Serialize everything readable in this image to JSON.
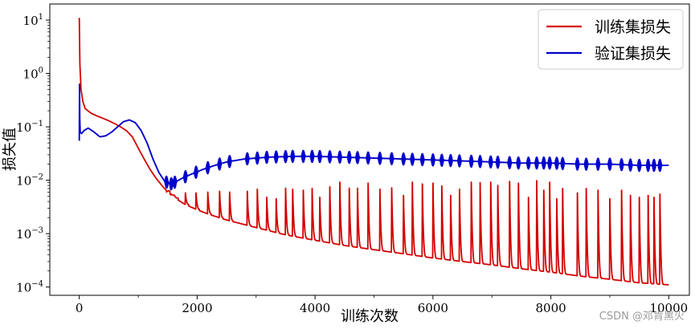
{
  "watermark": "CSDN @邓肯黑火",
  "chart_data": {
    "type": "line",
    "title": "",
    "xlabel": "训练次数",
    "ylabel": "损失值",
    "xlim": [
      -500,
      10350
    ],
    "ylim": [
      7e-05,
      20
    ],
    "yscale": "log",
    "xticks": [
      0,
      2000,
      4000,
      6000,
      8000,
      10000
    ],
    "yticks": [
      0.0001,
      0.001,
      0.01,
      0.1,
      1,
      10
    ],
    "ytick_labels": [
      {
        "base": "10",
        "exp": "−4"
      },
      {
        "base": "10",
        "exp": "−3"
      },
      {
        "base": "10",
        "exp": "−2"
      },
      {
        "base": "10",
        "exp": "−1"
      },
      {
        "base": "10",
        "exp": "0"
      },
      {
        "base": "10",
        "exp": "1"
      }
    ],
    "legend_position": "top-right",
    "grid": false,
    "series": [
      {
        "name": "训练集损失",
        "color": "#d40000",
        "x": [
          0,
          10,
          30,
          60,
          100,
          200,
          300,
          400,
          500,
          600,
          700,
          800,
          900,
          1000,
          1100,
          1200,
          1300,
          1400,
          1500,
          1600,
          1800,
          2000,
          2200,
          2500,
          3000,
          3500,
          4000,
          4500,
          5000,
          5500,
          6000,
          6500,
          7000,
          7500,
          8000,
          8500,
          9000,
          9500,
          10000
        ],
        "values": [
          11,
          1.5,
          0.5,
          0.3,
          0.22,
          0.18,
          0.16,
          0.145,
          0.13,
          0.115,
          0.1,
          0.085,
          0.065,
          0.04,
          0.025,
          0.016,
          0.011,
          0.008,
          0.006,
          0.0048,
          0.0035,
          0.0028,
          0.0023,
          0.0018,
          0.0013,
          0.00095,
          0.00075,
          0.0006,
          0.0005,
          0.00042,
          0.00035,
          0.0003,
          0.00026,
          0.00022,
          0.00019,
          0.00016,
          0.00014,
          0.00012,
          0.00011
        ],
        "spike_x": [
          1480,
          1560,
          1620,
          1800,
          1980,
          2180,
          2380,
          2550,
          2850,
          3020,
          3180,
          3340,
          3500,
          3620,
          3800,
          3950,
          4080,
          4250,
          4420,
          4580,
          4720,
          4900,
          5100,
          5300,
          5500,
          5650,
          5820,
          6000,
          6150,
          6300,
          6450,
          6650,
          6800,
          6980,
          7100,
          7300,
          7450,
          7620,
          7760,
          7880,
          7980,
          8100,
          8200,
          8450,
          8600,
          8800,
          9000,
          9200,
          9350,
          9500,
          9650,
          9750,
          9850
        ],
        "spike_peak": [
          0.006,
          0.0055,
          0.005,
          0.0058,
          0.0058,
          0.006,
          0.0062,
          0.006,
          0.0062,
          0.0068,
          0.0048,
          0.0045,
          0.0071,
          0.0068,
          0.0065,
          0.007,
          0.0048,
          0.0075,
          0.0092,
          0.0071,
          0.0071,
          0.0088,
          0.0068,
          0.0072,
          0.0052,
          0.0092,
          0.0085,
          0.0088,
          0.0078,
          0.0052,
          0.0068,
          0.0092,
          0.009,
          0.0092,
          0.008,
          0.0095,
          0.0088,
          0.0048,
          0.0098,
          0.0065,
          0.0092,
          0.0045,
          0.007,
          0.0058,
          0.007,
          0.0065,
          0.0045,
          0.0065,
          0.0052,
          0.0048,
          0.0052,
          0.0048,
          0.0055
        ]
      },
      {
        "name": "验证集损失",
        "color": "#0000cc",
        "x": [
          0,
          3,
          8,
          15,
          40,
          80,
          150,
          250,
          350,
          450,
          550,
          650,
          750,
          850,
          950,
          1050,
          1150,
          1250,
          1350,
          1450,
          1550,
          1650,
          1750,
          1900,
          2100,
          2300,
          2500,
          2800,
          3200,
          3600,
          4000,
          4500,
          5000,
          5500,
          6000,
          6500,
          7000,
          7500,
          8000,
          8500,
          9000,
          9500,
          10000
        ],
        "values": [
          0.055,
          0.9,
          0.15,
          0.08,
          0.075,
          0.085,
          0.095,
          0.08,
          0.065,
          0.068,
          0.08,
          0.1,
          0.125,
          0.135,
          0.12,
          0.085,
          0.05,
          0.025,
          0.014,
          0.0095,
          0.0085,
          0.0095,
          0.011,
          0.013,
          0.016,
          0.019,
          0.022,
          0.025,
          0.027,
          0.028,
          0.028,
          0.027,
          0.026,
          0.025,
          0.024,
          0.023,
          0.022,
          0.021,
          0.021,
          0.02,
          0.02,
          0.019,
          0.019
        ],
        "osc_x": [
          1480,
          1560,
          1620,
          1800,
          1980,
          2180,
          2380,
          2550,
          2850,
          3020,
          3180,
          3340,
          3500,
          3620,
          3800,
          3950,
          4080,
          4250,
          4420,
          4580,
          4720,
          4900,
          5100,
          5300,
          5500,
          5650,
          5820,
          6000,
          6150,
          6300,
          6450,
          6650,
          6800,
          6980,
          7100,
          7300,
          7450,
          7620,
          7760,
          7880,
          7980,
          8100,
          8200,
          8450,
          8600,
          8800,
          9000,
          9200,
          9350,
          9500,
          9650,
          9750,
          9850
        ]
      }
    ]
  }
}
